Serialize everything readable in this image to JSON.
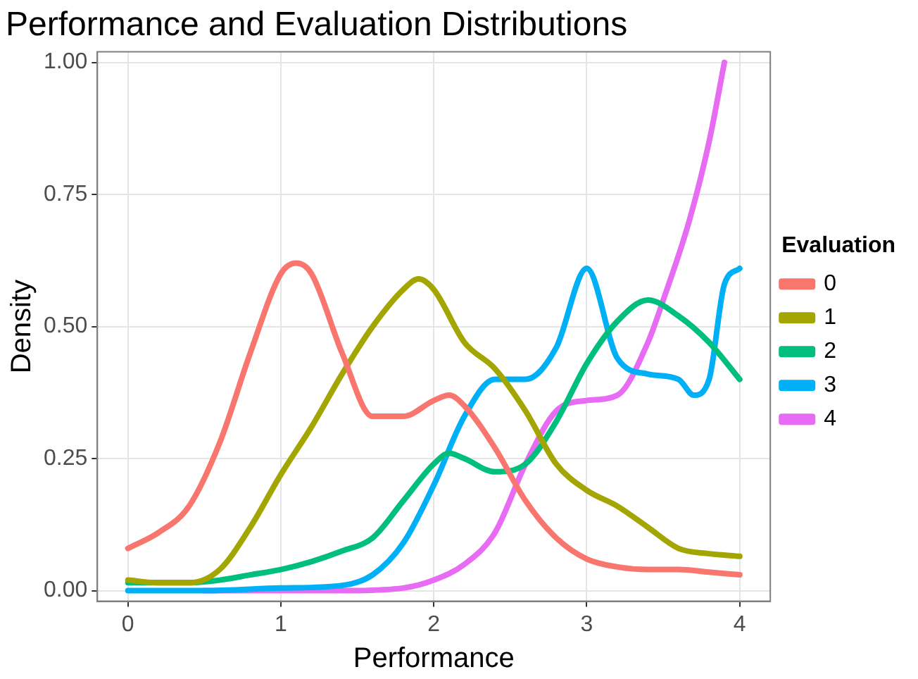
{
  "chart_data": {
    "type": "line",
    "title": "Performance and Evaluation Distributions",
    "xlabel": "Performance",
    "ylabel": "Density",
    "legend_title": "Evaluation",
    "legend": "right",
    "grid": true,
    "marker": "none",
    "line_style": "solid",
    "xlim": [
      -0.2,
      4.2
    ],
    "xticks": [
      0,
      1,
      2,
      3,
      4
    ],
    "ylim": [
      -0.02,
      1.02
    ],
    "yticks": [
      {
        "value": 0,
        "label": "0.00"
      },
      {
        "value": 0.25,
        "label": "0.25"
      },
      {
        "value": 0.5,
        "label": "0.50"
      },
      {
        "value": 0.75,
        "label": "0.75"
      },
      {
        "value": 1,
        "label": "1.00"
      }
    ],
    "series": [
      {
        "name": "0",
        "color": "#f8766d",
        "x": [
          0,
          0.2,
          0.4,
          0.6,
          0.8,
          1.0,
          1.1,
          1.2,
          1.4,
          1.6,
          1.8,
          2.0,
          2.1,
          2.2,
          2.4,
          2.6,
          2.8,
          3.0,
          3.2,
          3.4,
          3.6,
          3.8,
          4.0
        ],
        "values": [
          0.08,
          0.11,
          0.16,
          0.28,
          0.45,
          0.6,
          0.62,
          0.6,
          0.45,
          0.33,
          0.33,
          0.36,
          0.37,
          0.35,
          0.27,
          0.17,
          0.1,
          0.06,
          0.045,
          0.04,
          0.04,
          0.035,
          0.03
        ]
      },
      {
        "name": "1",
        "color": "#a3a500",
        "x": [
          0,
          0.2,
          0.4,
          0.6,
          0.8,
          1.0,
          1.2,
          1.4,
          1.6,
          1.8,
          1.9,
          2.0,
          2.2,
          2.4,
          2.6,
          2.8,
          3.0,
          3.2,
          3.4,
          3.6,
          3.8,
          4.0
        ],
        "values": [
          0.02,
          0.015,
          0.015,
          0.04,
          0.12,
          0.22,
          0.31,
          0.41,
          0.5,
          0.57,
          0.59,
          0.57,
          0.47,
          0.42,
          0.34,
          0.24,
          0.19,
          0.16,
          0.12,
          0.08,
          0.07,
          0.065
        ]
      },
      {
        "name": "2",
        "color": "#00bf7d",
        "x": [
          0,
          0.4,
          0.6,
          0.8,
          1.0,
          1.2,
          1.4,
          1.6,
          1.8,
          2.0,
          2.1,
          2.2,
          2.4,
          2.6,
          2.8,
          3.0,
          3.2,
          3.4,
          3.6,
          3.8,
          4.0
        ],
        "values": [
          0.015,
          0.015,
          0.02,
          0.03,
          0.04,
          0.055,
          0.075,
          0.1,
          0.17,
          0.24,
          0.26,
          0.25,
          0.225,
          0.24,
          0.32,
          0.43,
          0.51,
          0.55,
          0.52,
          0.47,
          0.4
        ]
      },
      {
        "name": "3",
        "color": "#00b0f6",
        "x": [
          0,
          0.5,
          1.0,
          1.4,
          1.6,
          1.8,
          2.0,
          2.2,
          2.4,
          2.6,
          2.8,
          3.0,
          3.2,
          3.4,
          3.6,
          3.7,
          3.8,
          3.9,
          4.0
        ],
        "values": [
          0,
          0,
          0.005,
          0.01,
          0.03,
          0.09,
          0.2,
          0.33,
          0.4,
          0.4,
          0.46,
          0.61,
          0.44,
          0.41,
          0.4,
          0.37,
          0.4,
          0.58,
          0.61
        ]
      },
      {
        "name": "4",
        "color": "#e76bf3",
        "x": [
          0.5,
          1.4,
          1.8,
          2.0,
          2.2,
          2.4,
          2.6,
          2.8,
          3.0,
          3.2,
          3.4,
          3.5,
          3.67,
          3.8,
          3.9
        ],
        "values": [
          0,
          0,
          0.005,
          0.02,
          0.05,
          0.11,
          0.24,
          0.34,
          0.36,
          0.37,
          0.47,
          0.55,
          0.7,
          0.85,
          1.0
        ]
      }
    ]
  }
}
